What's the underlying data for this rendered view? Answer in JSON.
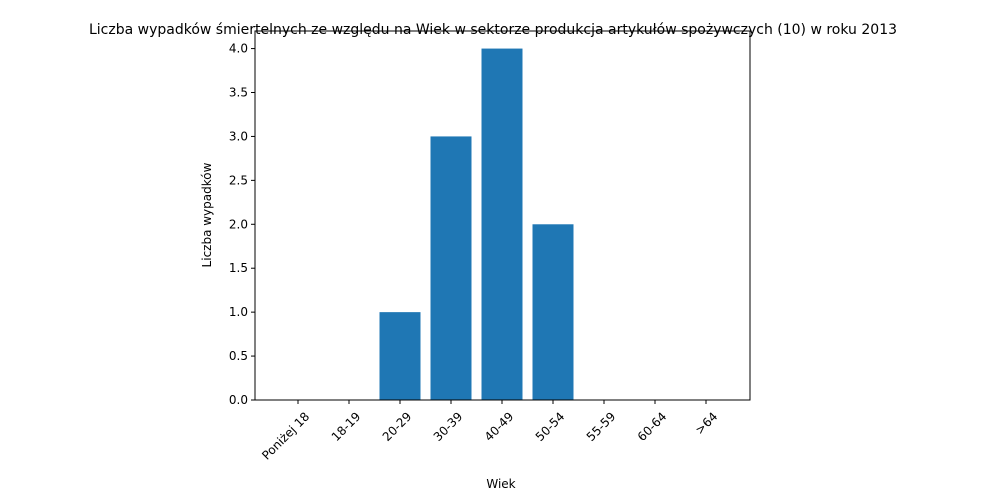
{
  "chart_data": {
    "type": "bar",
    "title": "Liczba wypadków śmiertelnych ze względu na Wiek w sektorze produkcja artykułów spożywczych  (10)   w roku 2013",
    "xlabel": "Wiek",
    "ylabel": "Liczba wypadków",
    "categories": [
      "Poniżej 18",
      "18-19",
      "20-29",
      "30-39",
      "40-49",
      "50-54",
      "55-59",
      "60-64",
      ">64"
    ],
    "values": [
      0,
      0,
      1,
      3,
      4,
      2,
      0,
      0,
      0
    ],
    "ylim": [
      0,
      4.2
    ],
    "yticks": [
      "0.0",
      "0.5",
      "1.0",
      "1.5",
      "2.0",
      "2.5",
      "3.0",
      "3.5",
      "4.0"
    ],
    "bar_color": "#1f77b4",
    "grid": false
  }
}
